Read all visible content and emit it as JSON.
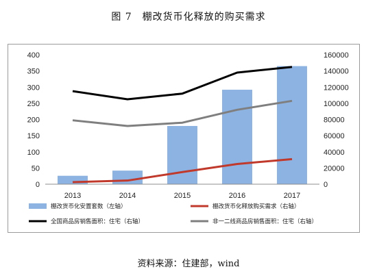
{
  "title": "图 7　棚改货币化释放的购买需求",
  "source": "资料来源：住建部，wind",
  "colors": {
    "bar": "#8db3e2",
    "red": "#c0392b",
    "black": "#000000",
    "gray": "#7f7f7f"
  },
  "chart_data": {
    "type": "bar+line",
    "categories": [
      "2013",
      "2014",
      "2015",
      "2016",
      "2017"
    ],
    "left_axis": {
      "min": 0,
      "max": 400,
      "step": 50,
      "ticks": [
        "0",
        "50",
        "100",
        "150",
        "200",
        "250",
        "300",
        "350",
        "400"
      ]
    },
    "right_axis": {
      "min": 0,
      "max": 160000,
      "step": 20000,
      "ticks": [
        "0",
        "20000",
        "40000",
        "60000",
        "80000",
        "100000",
        "120000",
        "140000",
        "160000"
      ]
    },
    "series": [
      {
        "name": "棚改货币化安置套数（左轴）",
        "type": "bar",
        "axis": "left",
        "color": "#8db3e2",
        "values": [
          26,
          42,
          180,
          292,
          365
        ]
      },
      {
        "name": "棚改货币化释放购买需求（右轴）",
        "type": "line",
        "axis": "right",
        "color": "#c0392b",
        "values": [
          2500,
          4500,
          15000,
          25000,
          31000
        ]
      },
      {
        "name": "全国商品房销售面积：住宅（右轴）",
        "type": "line",
        "axis": "right",
        "color": "#000000",
        "values": [
          115000,
          105000,
          112000,
          138000,
          145000
        ]
      },
      {
        "name": "非一二线商品房销售面积：住宅（右轴）",
        "type": "line",
        "axis": "right",
        "color": "#7f7f7f",
        "values": [
          79000,
          72000,
          76000,
          92000,
          103000
        ]
      }
    ],
    "grid": false,
    "legend": "bottom"
  }
}
